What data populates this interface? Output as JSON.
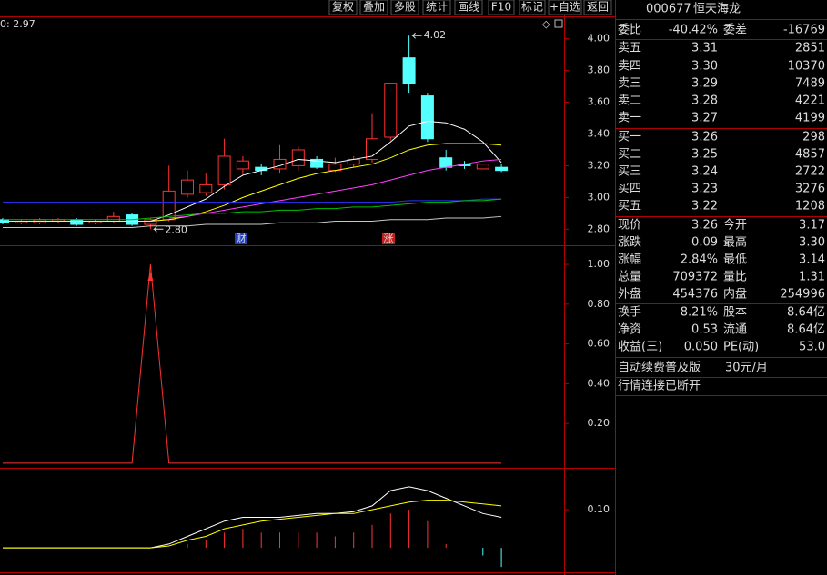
{
  "toolbar": [
    "复权",
    "叠加",
    "多股",
    "统计",
    "画线",
    "F10",
    "标记",
    "+自选",
    "返回"
  ],
  "chart_data": [
    {
      "type": "candlestick",
      "legend_text": "0: 2.97",
      "open": [
        2.86,
        2.84,
        2.84,
        2.85,
        2.86,
        2.84,
        2.85,
        2.89,
        2.83,
        2.86,
        3.02,
        3.03,
        3.08,
        3.18,
        3.19,
        3.18,
        3.2,
        3.24,
        3.17,
        3.21,
        3.24,
        3.38,
        3.88,
        3.64,
        3.25,
        3.21,
        3.18,
        3.19
      ],
      "high": [
        2.87,
        2.86,
        2.87,
        2.87,
        2.87,
        2.86,
        2.91,
        2.9,
        2.87,
        3.2,
        3.17,
        3.15,
        3.37,
        3.26,
        3.21,
        3.33,
        3.32,
        3.26,
        3.25,
        3.26,
        3.53,
        3.72,
        4.02,
        3.66,
        3.3,
        3.23,
        3.21,
        3.21
      ],
      "low": [
        2.83,
        2.83,
        2.83,
        2.84,
        2.82,
        2.83,
        2.84,
        2.82,
        2.8,
        2.85,
        3.0,
        3.01,
        3.05,
        3.14,
        3.14,
        3.15,
        3.17,
        3.18,
        3.16,
        3.19,
        3.22,
        3.36,
        3.66,
        3.35,
        3.17,
        3.18,
        3.18,
        3.16
      ],
      "close": [
        2.84,
        2.85,
        2.86,
        2.86,
        2.83,
        2.85,
        2.88,
        2.83,
        2.86,
        3.04,
        3.11,
        3.08,
        3.26,
        3.23,
        3.17,
        3.24,
        3.3,
        3.19,
        3.21,
        3.24,
        3.37,
        3.72,
        3.72,
        3.37,
        3.19,
        3.2,
        3.21,
        3.17
      ],
      "up_color": "#ff3232",
      "down_color": "#54ffff",
      "series": [
        {
          "color": "#ffffff",
          "values": [
            2.85,
            2.85,
            2.85,
            2.85,
            2.85,
            2.85,
            2.85,
            2.85,
            2.85,
            2.89,
            2.94,
            2.99,
            3.07,
            3.14,
            3.17,
            3.2,
            3.24,
            3.23,
            3.22,
            3.24,
            3.26,
            3.35,
            3.45,
            3.48,
            3.47,
            3.43,
            3.35,
            3.22
          ]
        },
        {
          "color": "#ffff00",
          "values": [
            2.85,
            2.85,
            2.85,
            2.85,
            2.85,
            2.85,
            2.85,
            2.85,
            2.85,
            2.86,
            2.88,
            2.91,
            2.95,
            3.0,
            3.04,
            3.08,
            3.12,
            3.15,
            3.17,
            3.19,
            3.21,
            3.25,
            3.3,
            3.33,
            3.34,
            3.34,
            3.34,
            3.33
          ]
        },
        {
          "color": "#ff40ff",
          "values": [
            null,
            null,
            null,
            null,
            null,
            null,
            null,
            null,
            null,
            2.87,
            2.88,
            2.9,
            2.92,
            2.94,
            2.96,
            2.98,
            3.0,
            3.02,
            3.04,
            3.06,
            3.08,
            3.11,
            3.14,
            3.17,
            3.19,
            3.21,
            3.23,
            3.24
          ]
        },
        {
          "color": "#3030ff",
          "values": [
            2.97,
            2.97,
            2.97,
            2.97,
            2.97,
            2.97,
            2.97,
            2.97,
            2.97,
            2.97,
            2.97,
            2.97,
            2.97,
            2.97,
            2.97,
            2.97,
            2.97,
            2.97,
            2.97,
            2.97,
            2.97,
            2.97,
            2.98,
            2.98,
            2.98,
            2.98,
            2.99,
            2.99
          ]
        },
        {
          "color": "#00c000",
          "values": [
            2.86,
            2.86,
            2.86,
            2.86,
            2.86,
            2.86,
            2.86,
            2.86,
            2.87,
            2.88,
            2.89,
            2.9,
            2.9,
            2.91,
            2.91,
            2.92,
            2.92,
            2.93,
            2.93,
            2.94,
            2.94,
            2.95,
            2.96,
            2.97,
            2.97,
            2.98,
            2.98,
            2.99
          ]
        },
        {
          "color": "#c8c8c8",
          "values": [
            2.81,
            2.81,
            2.81,
            2.81,
            2.81,
            2.81,
            2.81,
            2.81,
            2.82,
            2.82,
            2.82,
            2.83,
            2.83,
            2.83,
            2.83,
            2.84,
            2.84,
            2.84,
            2.85,
            2.85,
            2.85,
            2.86,
            2.86,
            2.86,
            2.87,
            2.87,
            2.87,
            2.88
          ]
        }
      ],
      "annotations": [
        {
          "value": 4.02,
          "label": "4.02"
        },
        {
          "value": 2.8,
          "label": "2.80"
        }
      ],
      "events": [
        "财",
        "涨"
      ],
      "ylim": [
        2.71,
        4.09
      ],
      "yticks": [
        {
          "value": 2.8,
          "label": "2.80"
        },
        {
          "value": 3.0,
          "label": "3.00"
        },
        {
          "value": 3.2,
          "label": "3.20"
        },
        {
          "value": 3.4,
          "label": "3.40"
        },
        {
          "value": 3.6,
          "label": "3.60"
        },
        {
          "value": 3.8,
          "label": "3.80"
        },
        {
          "value": 4.0,
          "label": "4.00"
        }
      ]
    },
    {
      "type": "line",
      "series": [
        {
          "color": "#ff3232",
          "values": [
            0,
            0,
            0,
            0,
            0,
            0,
            0,
            0,
            1,
            0,
            0,
            0,
            0,
            0,
            0,
            0,
            0,
            0,
            0,
            0,
            0,
            0,
            0,
            0,
            0,
            0,
            0,
            0
          ]
        }
      ],
      "ylim": [
        -0.014,
        1.087
      ],
      "yticks": [
        {
          "value": 0.2,
          "label": "0.20"
        },
        {
          "value": 0.4,
          "label": "0.40"
        },
        {
          "value": 0.6,
          "label": "0.60"
        },
        {
          "value": 0.8,
          "label": "0.80"
        },
        {
          "value": 1.0,
          "label": "1.00"
        }
      ]
    },
    {
      "type": "indicator",
      "bars": {
        "color": "#ff3232",
        "negative_color": "#54ffff",
        "values": [
          0,
          0,
          0,
          0,
          0,
          0,
          0,
          0,
          0,
          0,
          0.01,
          0.02,
          0.04,
          0.05,
          0.04,
          0.04,
          0.04,
          0.04,
          0.03,
          0.04,
          0.06,
          0.09,
          0.1,
          0.07,
          0.01,
          0,
          -0.02,
          -0.05
        ]
      },
      "series": [
        {
          "color": "#ffffff",
          "values": [
            0,
            0,
            0,
            0,
            0,
            0,
            0,
            0,
            0,
            0.01,
            0.03,
            0.05,
            0.07,
            0.08,
            0.08,
            0.08,
            0.085,
            0.09,
            0.09,
            0.095,
            0.11,
            0.15,
            0.16,
            0.15,
            0.13,
            0.11,
            0.09,
            0.08
          ]
        },
        {
          "color": "#ffff00",
          "values": [
            0,
            0,
            0,
            0,
            0,
            0,
            0,
            0,
            0,
            0.005,
            0.02,
            0.03,
            0.05,
            0.06,
            0.07,
            0.075,
            0.08,
            0.085,
            0.09,
            0.09,
            0.1,
            0.11,
            0.12,
            0.125,
            0.125,
            0.12,
            0.115,
            0.11
          ]
        }
      ],
      "ylim": [
        -0.064,
        0.205
      ],
      "yticks": [
        {
          "value": 0.1,
          "label": "0.10"
        }
      ]
    }
  ],
  "quote": {
    "code": "000677",
    "name": "恒天海龙",
    "weibi": [
      "委比",
      "-40.42%",
      "委差",
      "-16769"
    ],
    "sell": [
      [
        "卖五",
        "3.31",
        "2851"
      ],
      [
        "卖四",
        "3.30",
        "10370"
      ],
      [
        "卖三",
        "3.29",
        "7489"
      ],
      [
        "卖二",
        "3.28",
        "4221"
      ],
      [
        "卖一",
        "3.27",
        "4199"
      ]
    ],
    "buy": [
      [
        "买一",
        "3.26",
        "298"
      ],
      [
        "买二",
        "3.25",
        "4857"
      ],
      [
        "买三",
        "3.24",
        "2722"
      ],
      [
        "买四",
        "3.23",
        "3276"
      ],
      [
        "买五",
        "3.22",
        "1208"
      ]
    ],
    "stats": [
      [
        "现价",
        "3.26",
        "今开",
        "3.17"
      ],
      [
        "涨跌",
        "0.09",
        "最高",
        "3.30"
      ],
      [
        "涨幅",
        "2.84%",
        "最低",
        "3.14"
      ],
      [
        "总量",
        "709372",
        "量比",
        "1.31"
      ],
      [
        "外盘",
        "454376",
        "内盘",
        "254996"
      ]
    ],
    "stats2": [
      [
        "换手",
        "8.21%",
        "股本",
        "8.64亿"
      ],
      [
        "净资",
        "0.53",
        "流通",
        "8.64亿"
      ],
      [
        "收益(三)",
        "0.050",
        "PE(动)",
        "53.0"
      ]
    ],
    "ad": [
      "自动续费普及版",
      "30元/月"
    ],
    "status": "行情连接已断开"
  }
}
